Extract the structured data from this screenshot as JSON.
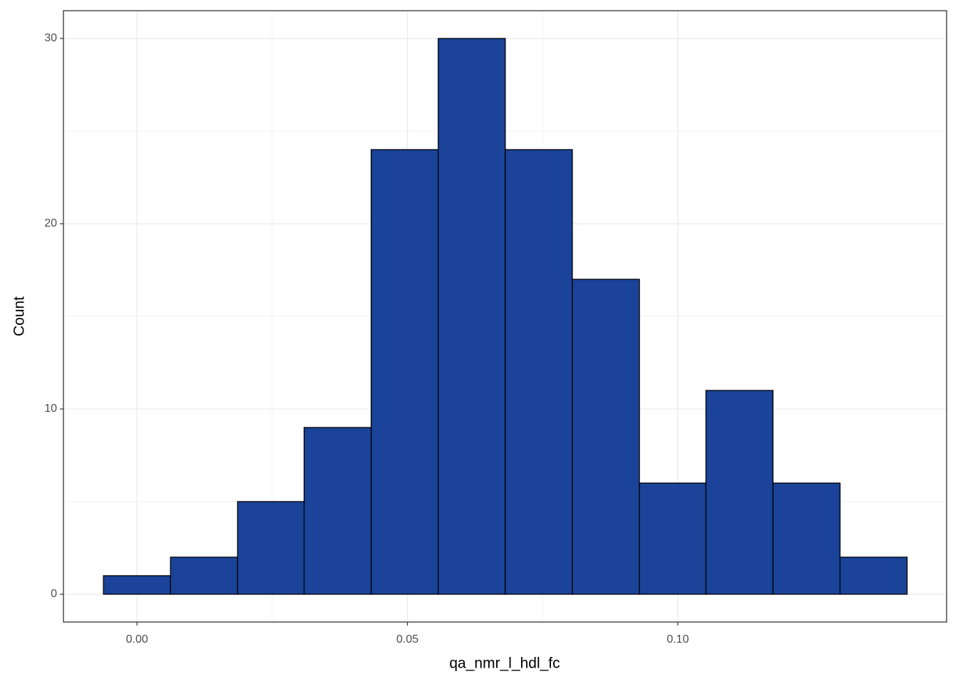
{
  "chart_data": {
    "type": "histogram",
    "x_label": "qa_nmr_l_hdl_fc",
    "y_label": "Count",
    "bins": [
      -0.0062,
      0.0062,
      0.0186,
      0.0309,
      0.0433,
      0.0557,
      0.0681,
      0.0805,
      0.0929,
      0.1052,
      0.1176,
      0.13,
      0.1424
    ],
    "values": [
      1,
      2,
      5,
      9,
      24,
      30,
      24,
      17,
      6,
      11,
      6,
      2
    ],
    "color": "#1a4399",
    "edgecolor": "#000000",
    "xlim": [
      -0.0136,
      0.1497
    ],
    "ylim": [
      -1.5,
      31.5
    ],
    "xticks": [
      {
        "value": 0,
        "label": "0.00"
      },
      0.05,
      {
        "value": 0.1,
        "label": "0.10"
      }
    ],
    "yticks": [
      0,
      10,
      20,
      30
    ],
    "grid": true
  }
}
